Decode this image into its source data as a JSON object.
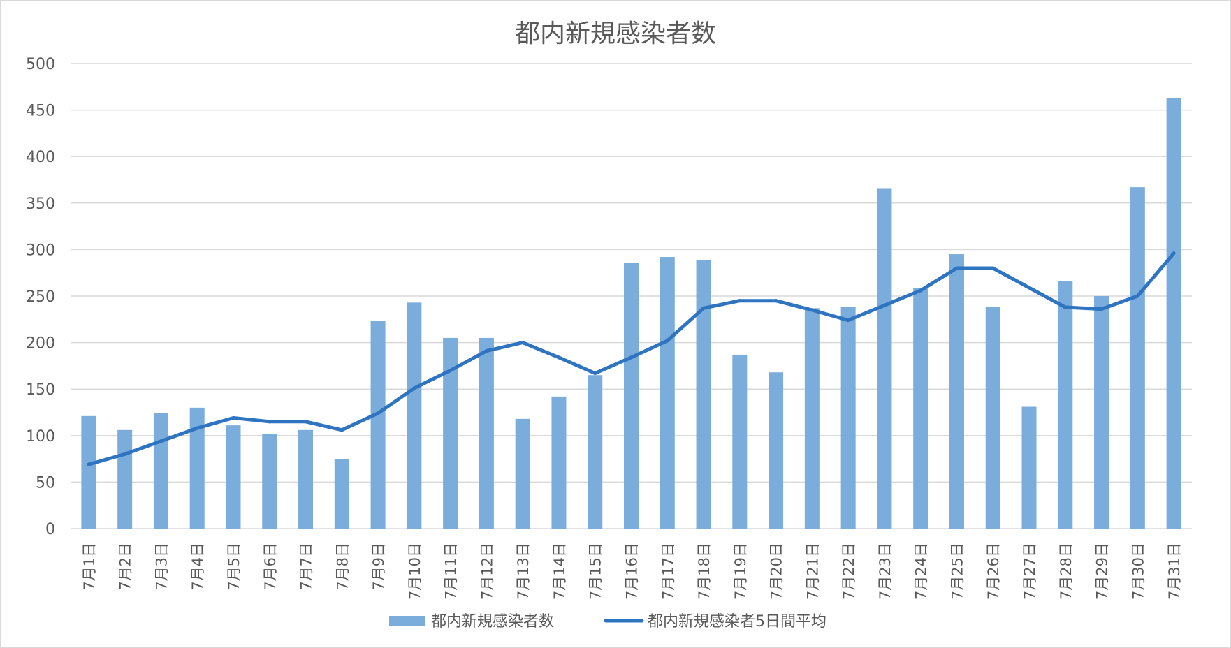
{
  "chart_data": {
    "type": "bar",
    "title": "都内新規感染者数",
    "xlabel": "",
    "ylabel": "",
    "ylim": [
      0,
      500
    ],
    "yticks": [
      0,
      50,
      100,
      150,
      200,
      250,
      300,
      350,
      400,
      450,
      500
    ],
    "grid": true,
    "legend_position": "bottom",
    "categories": [
      "7月1日",
      "7月2日",
      "7月3日",
      "7月4日",
      "7月5日",
      "7月6日",
      "7月7日",
      "7月8日",
      "7月9日",
      "7月10日",
      "7月11日",
      "7月12日",
      "7月13日",
      "7月14日",
      "7月15日",
      "7月16日",
      "7月17日",
      "7月18日",
      "7月19日",
      "7月20日",
      "7月21日",
      "7月22日",
      "7月23日",
      "7月24日",
      "7月25日",
      "7月26日",
      "7月27日",
      "7月28日",
      "7月29日",
      "7月30日",
      "7月31日"
    ],
    "series": [
      {
        "name": "都内新規感染者数",
        "type": "bar",
        "color": "#7aacdc",
        "values": [
          121,
          106,
          124,
          130,
          111,
          102,
          106,
          75,
          223,
          243,
          205,
          205,
          118,
          142,
          165,
          286,
          292,
          289,
          187,
          168,
          237,
          238,
          366,
          259,
          295,
          238,
          131,
          266,
          250,
          367,
          463
        ]
      },
      {
        "name": "都内新規感染者5日間平均",
        "type": "line",
        "color": "#2e74c0",
        "values": [
          69,
          80,
          94,
          108,
          119,
          115,
          115,
          106,
          124,
          151,
          170,
          191,
          200,
          184,
          167,
          184,
          202,
          237,
          245,
          245,
          235,
          224,
          240,
          256,
          280,
          280,
          259,
          238,
          236,
          250,
          296
        ]
      }
    ]
  }
}
